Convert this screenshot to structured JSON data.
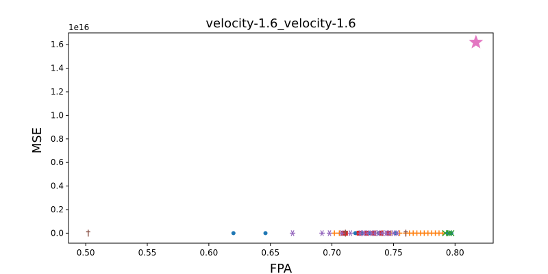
{
  "chart_data": {
    "type": "scatter",
    "title": "velocity-1.6_velocity-1.6",
    "xlabel": "FPA",
    "ylabel": "MSE",
    "y_offset_label": "1e16",
    "xlim": [
      0.486,
      0.831
    ],
    "ylim": [
      -0.085,
      1.7
    ],
    "y_scale_exponent": 16,
    "x_ticks": [
      0.5,
      0.55,
      0.6,
      0.65,
      0.7,
      0.75,
      0.8
    ],
    "x_tick_labels": [
      "0.50",
      "0.55",
      "0.60",
      "0.65",
      "0.70",
      "0.75",
      "0.80"
    ],
    "y_ticks": [
      0.0,
      0.2,
      0.4,
      0.6,
      0.8,
      1.0,
      1.2,
      1.4,
      1.6
    ],
    "y_tick_labels": [
      "0.0",
      "0.2",
      "0.4",
      "0.6",
      "0.8",
      "1.0",
      "1.2",
      "1.4",
      "1.6"
    ],
    "grid": false,
    "series": [
      {
        "marker": "circle",
        "color": "#1f77b4",
        "points": [
          [
            0.62,
            0
          ],
          [
            0.646,
            0
          ],
          [
            0.719,
            0
          ],
          [
            0.724,
            0
          ],
          [
            0.731,
            0
          ],
          [
            0.738,
            0
          ],
          [
            0.745,
            0
          ],
          [
            0.752,
            0
          ],
          [
            0.794,
            0
          ],
          [
            0.797,
            0
          ]
        ]
      },
      {
        "marker": "plus",
        "color": "#ff7f0e",
        "points": [
          [
            0.702,
            0
          ],
          [
            0.706,
            0
          ],
          [
            0.735,
            0
          ],
          [
            0.741,
            0
          ],
          [
            0.748,
            0
          ],
          [
            0.755,
            0
          ],
          [
            0.76,
            0
          ],
          [
            0.763,
            0
          ],
          [
            0.766,
            0
          ],
          [
            0.769,
            0
          ],
          [
            0.772,
            0
          ],
          [
            0.775,
            0
          ],
          [
            0.778,
            0
          ],
          [
            0.781,
            0
          ],
          [
            0.784,
            0
          ],
          [
            0.787,
            0
          ],
          [
            0.79,
            0
          ]
        ]
      },
      {
        "marker": "x",
        "color": "#2ca02c",
        "points": [
          [
            0.792,
            0
          ],
          [
            0.795,
            0
          ],
          [
            0.797,
            0
          ]
        ]
      },
      {
        "marker": "square",
        "color": "#d62728",
        "points": [
          [
            0.709,
            0
          ],
          [
            0.711,
            0
          ],
          [
            0.722,
            0
          ],
          [
            0.728,
            0
          ],
          [
            0.734,
            0
          ],
          [
            0.74,
            0
          ],
          [
            0.746,
            0
          ]
        ]
      },
      {
        "marker": "star6",
        "color": "#9467bd",
        "points": [
          [
            0.668,
            0
          ],
          [
            0.692,
            0
          ],
          [
            0.698,
            0
          ],
          [
            0.708,
            0
          ],
          [
            0.715,
            0
          ],
          [
            0.723,
            0
          ],
          [
            0.726,
            0
          ],
          [
            0.729,
            0
          ],
          [
            0.732,
            0
          ],
          [
            0.735,
            0
          ],
          [
            0.738,
            0
          ],
          [
            0.741,
            0
          ],
          [
            0.744,
            0
          ],
          [
            0.747,
            0
          ],
          [
            0.75,
            0
          ],
          [
            0.753,
            0
          ]
        ]
      },
      {
        "marker": "tri",
        "color": "#8c564b",
        "points": [
          [
            0.502,
            0
          ],
          [
            0.711,
            0
          ],
          [
            0.76,
            0
          ]
        ]
      },
      {
        "marker": "star",
        "color": "#e377c2",
        "size": 22,
        "points": [
          [
            0.817,
            1.62
          ]
        ]
      }
    ]
  }
}
